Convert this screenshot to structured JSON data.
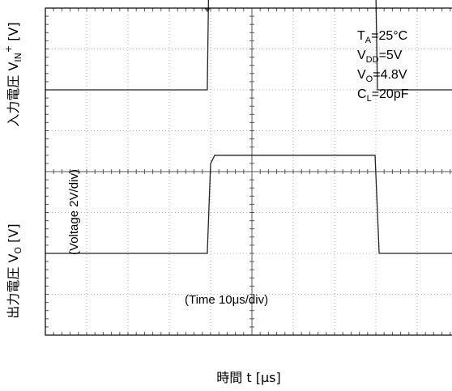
{
  "chart_data": {
    "type": "line",
    "xlabel": "時間 t [μs]",
    "x_annotation": "(Time 10μs/div)",
    "y_annotation": "(Voltage 2V/div)",
    "upper_ylabel": {
      "main": "入力電圧 V",
      "sub": "IN",
      "sup": "+",
      "unit": " [V]"
    },
    "lower_ylabel": {
      "main": "出力電圧 V",
      "sub": "O",
      "unit": " [V]"
    },
    "grid": true,
    "x_divisions": 10,
    "y_divisions": 8,
    "conditions": [
      {
        "pre": "T",
        "sub": "A",
        "post": "=25°C"
      },
      {
        "pre": "V",
        "sub": "DD",
        "post": "=5V"
      },
      {
        "pre": "V",
        "sub": "O",
        "post": "=4.8V"
      },
      {
        "pre": "C",
        "sub": "L",
        "post": "=20pF"
      }
    ],
    "series": [
      {
        "name": "V_IN+",
        "x_div": [
          0,
          3.92,
          3.95,
          8.0,
          8.04,
          10
        ],
        "y_div": [
          6,
          6,
          8.4,
          8.4,
          6,
          6
        ]
      },
      {
        "name": "V_O",
        "x_div": [
          0,
          3.92,
          4.0,
          4.1,
          7.98,
          8.04,
          8.08,
          10
        ],
        "y_div": [
          2,
          2,
          4.2,
          4.4,
          4.4,
          3.0,
          2,
          2
        ]
      }
    ]
  }
}
